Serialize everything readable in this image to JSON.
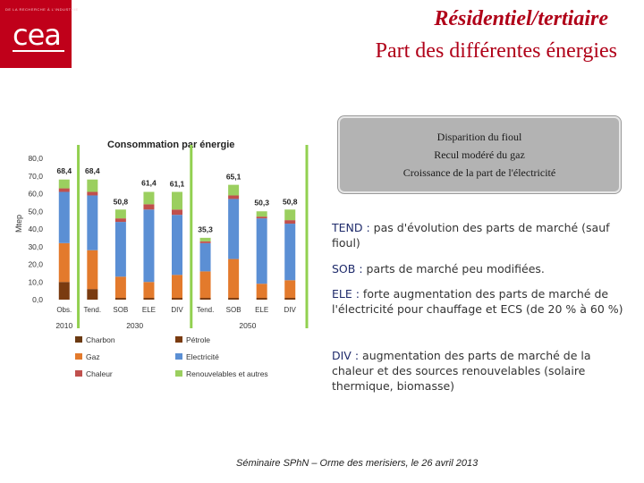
{
  "header": {
    "logo_tag": "DE LA RECHERCHE À L'INDUSTRIE",
    "logo_text": "cea",
    "title": "Résidentiel/tertiaire",
    "subtitle": "Part des différentes énergies"
  },
  "callout": {
    "lines": [
      "Disparition du fioul",
      "Recul modéré du gaz",
      "Croissance de la part de l'électricité"
    ]
  },
  "paragraphs": [
    {
      "key": "TEND :",
      "text": " pas d'évolution des parts de marché (sauf fioul)"
    },
    {
      "key": "SOB :",
      "text": " parts de marché peu modifiées."
    },
    {
      "key": "ELE :",
      "text": " forte augmentation des parts de marché de l'électricité pour chauffage et ECS (de 20 % à 60 %)"
    },
    {
      "key": "DIV :",
      "text": " augmentation des parts de marché de la chaleur et des sources renouvelables (solaire thermique, biomasse)"
    }
  ],
  "footer": "Séminaire SPhN – Orme des merisiers, le 26 avril 2013",
  "chart_data": {
    "type": "bar",
    "stacked": true,
    "title": "Consommation par énergie",
    "ylabel": "Mtep",
    "ylim": [
      0,
      80
    ],
    "ytick_labels": [
      "0,0",
      "10,0",
      "20,0",
      "30,0",
      "40,0",
      "50,0",
      "60,0",
      "70,0",
      "80,0"
    ],
    "categories": [
      "Obs.",
      "Tend.",
      "SOB",
      "ELE",
      "DIV",
      "Tend.",
      "SOB",
      "ELE",
      "DIV"
    ],
    "year_groups": [
      {
        "label": "2010",
        "start": 0,
        "end": 0
      },
      {
        "label": "2030",
        "start": 1,
        "end": 4
      },
      {
        "label": "2050",
        "start": 5,
        "end": 8
      }
    ],
    "totals": [
      68.4,
      68.4,
      50.8,
      61.4,
      61.1,
      35.3,
      65.1,
      50.3,
      50.8
    ],
    "total_labels": [
      "68,4",
      "68,4",
      "50,8",
      "61,4",
      "61,1",
      "35,3",
      "65,1",
      "50,3",
      "50,8"
    ],
    "series": [
      {
        "name": "Charbon",
        "color": "#6b3a12",
        "values": [
          0,
          0,
          0,
          0,
          0,
          0,
          0,
          0,
          0
        ]
      },
      {
        "name": "Pétrole",
        "color": "#7a3b10",
        "values": [
          10,
          6,
          1,
          1,
          1,
          1,
          1,
          1,
          1
        ]
      },
      {
        "name": "Gaz",
        "color": "#e37a2c",
        "values": [
          22,
          22,
          12,
          9,
          13,
          15,
          22,
          8,
          10
        ]
      },
      {
        "name": "Electricité",
        "color": "#5b8fd4",
        "values": [
          29,
          31,
          31,
          41,
          34,
          16,
          34,
          37,
          32
        ]
      },
      {
        "name": "Chaleur",
        "color": "#c0504d",
        "values": [
          2,
          2,
          2,
          3,
          3,
          1,
          2,
          1,
          2
        ]
      },
      {
        "name": "Renouvelables et autres",
        "color": "#9bcf5f",
        "values": [
          5,
          7,
          5,
          7,
          10,
          2,
          6,
          3,
          6
        ]
      }
    ],
    "legend_position": "bottom",
    "grid": false
  }
}
